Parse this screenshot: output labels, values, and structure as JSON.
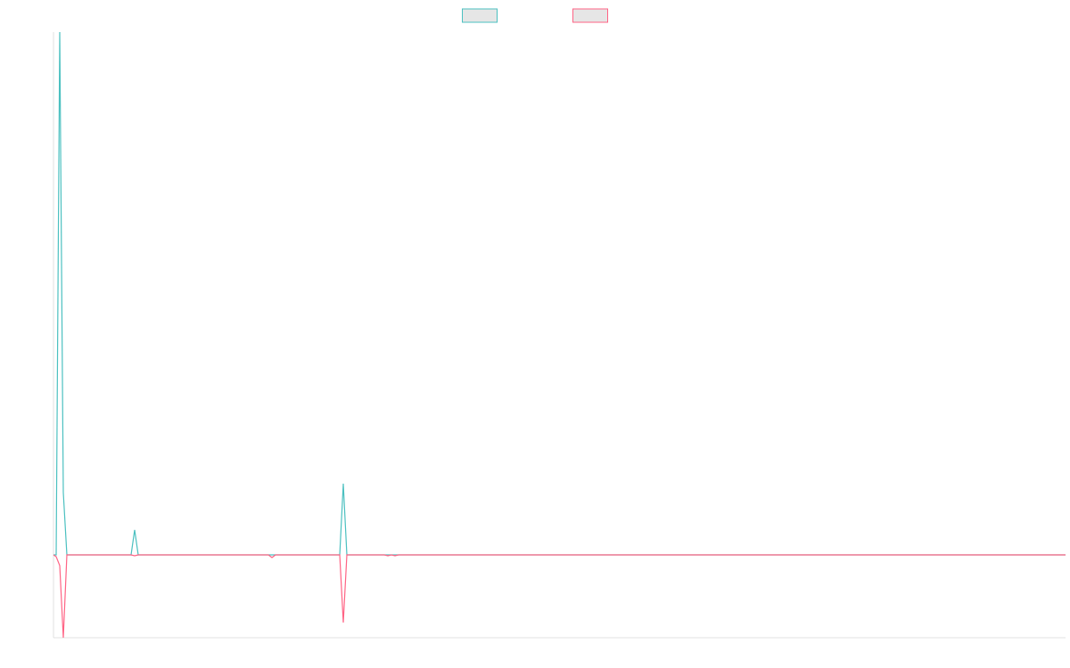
{
  "chart_data": {
    "type": "line",
    "x": [
      0,
      3,
      7,
      11,
      15,
      87,
      91,
      95,
      241,
      245,
      249,
      321,
      325,
      329,
      371,
      375,
      379,
      383,
      387,
      1135
    ],
    "series": [
      {
        "color": "#4bc0c0",
        "values": [
          0,
          0,
          587,
          70,
          0,
          0,
          28,
          0,
          0,
          0,
          0,
          0,
          80,
          0,
          0,
          0,
          0,
          0,
          0,
          0
        ]
      },
      {
        "color": "#ff6384",
        "values": [
          0,
          -2,
          -12,
          -93,
          0,
          0,
          -1,
          0,
          0,
          -3,
          0,
          0,
          -76,
          0,
          0,
          -1,
          0,
          -1,
          0,
          0
        ]
      }
    ],
    "xlim": [
      0,
      1135
    ],
    "ylim": [
      -93,
      587
    ],
    "legend": "top"
  }
}
